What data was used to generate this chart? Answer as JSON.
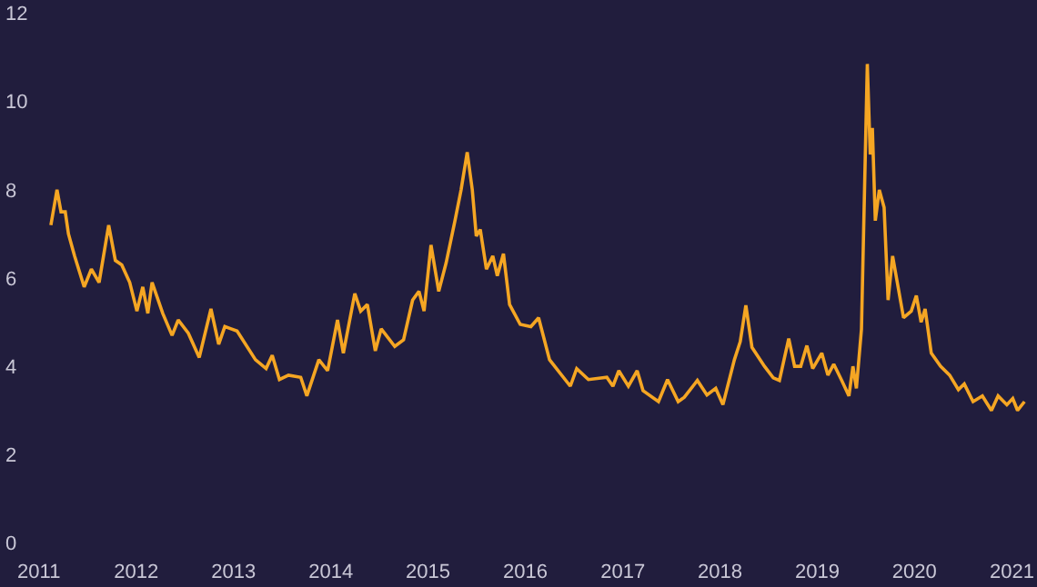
{
  "chart_data": {
    "type": "line",
    "x": [
      "2011-02-15",
      "2011-03-10",
      "2011-03-25",
      "2011-04-10",
      "2011-04-22",
      "2011-05-15",
      "2011-06-20",
      "2011-07-17",
      "2011-08-15",
      "2011-09-20",
      "2011-10-15",
      "2011-11-08",
      "2011-12-08",
      "2012-01-04",
      "2012-01-26",
      "2012-02-14",
      "2012-03-01",
      "2012-04-10",
      "2012-05-15",
      "2012-06-07",
      "2012-07-15",
      "2012-08-25",
      "2012-10-08",
      "2012-11-06",
      "2012-11-29",
      "2013-01-14",
      "2013-03-24",
      "2013-05-03",
      "2013-05-26",
      "2013-06-22",
      "2013-07-26",
      "2013-09-10",
      "2013-10-03",
      "2013-11-17",
      "2013-12-20",
      "2014-01-26",
      "2014-02-17",
      "2014-04-01",
      "2014-04-23",
      "2014-05-18",
      "2014-06-17",
      "2014-07-09",
      "2014-08-29",
      "2014-10-01",
      "2014-11-04",
      "2014-11-28",
      "2014-12-17",
      "2015-01-12",
      "2015-02-10",
      "2015-03-10",
      "2015-04-12",
      "2015-05-05",
      "2015-05-28",
      "2015-06-16",
      "2015-07-01",
      "2015-07-16",
      "2015-08-08",
      "2015-09-01",
      "2015-09-18",
      "2015-10-11",
      "2015-11-03",
      "2015-12-13",
      "2016-01-22",
      "2016-02-20",
      "2016-04-01",
      "2016-06-18",
      "2016-07-12",
      "2016-08-25",
      "2016-11-02",
      "2016-11-25",
      "2016-12-17",
      "2017-01-22",
      "2017-02-24",
      "2017-03-18",
      "2017-05-15",
      "2017-06-18",
      "2017-07-28",
      "2017-08-20",
      "2017-10-08",
      "2017-11-13",
      "2017-12-16",
      "2018-01-12",
      "2018-02-24",
      "2018-03-18",
      "2018-04-08",
      "2018-05-01",
      "2018-06-17",
      "2018-07-20",
      "2018-08-12",
      "2018-09-16",
      "2018-10-08",
      "2018-10-31",
      "2018-11-23",
      "2018-12-15",
      "2019-01-18",
      "2019-02-10",
      "2019-03-04",
      "2019-04-03",
      "2019-04-30",
      "2019-05-15",
      "2019-05-28",
      "2019-06-16",
      "2019-07-08",
      "2019-07-19",
      "2019-07-27",
      "2019-08-07",
      "2019-08-22",
      "2019-09-09",
      "2019-09-24",
      "2019-10-11",
      "2019-10-30",
      "2019-11-21",
      "2019-12-20",
      "2020-01-08",
      "2020-01-26",
      "2020-02-10",
      "2020-03-04",
      "2020-04-08",
      "2020-05-12",
      "2020-06-14",
      "2020-07-06",
      "2020-08-08",
      "2020-09-12",
      "2020-10-16",
      "2020-11-10",
      "2020-12-13",
      "2021-01-04",
      "2021-01-22",
      "2021-02-17"
    ],
    "series": [
      {
        "color": "#f5a623",
        "values": [
          7.2,
          8.0,
          7.5,
          7.5,
          7.0,
          6.5,
          5.8,
          6.2,
          5.9,
          7.2,
          6.4,
          6.3,
          5.9,
          5.25,
          5.8,
          5.2,
          5.9,
          5.2,
          4.7,
          5.05,
          4.75,
          4.2,
          5.3,
          4.5,
          4.9,
          4.8,
          4.15,
          3.95,
          4.25,
          3.7,
          3.8,
          3.75,
          3.33,
          4.15,
          3.9,
          5.05,
          4.3,
          5.65,
          5.25,
          5.4,
          4.35,
          4.85,
          4.45,
          4.6,
          5.5,
          5.7,
          5.25,
          6.75,
          5.7,
          6.35,
          7.3,
          8.0,
          8.85,
          8.0,
          6.95,
          7.1,
          6.2,
          6.5,
          6.05,
          6.55,
          5.4,
          4.95,
          4.9,
          5.1,
          4.15,
          3.55,
          3.95,
          3.7,
          3.75,
          3.55,
          3.9,
          3.55,
          3.9,
          3.45,
          3.2,
          3.7,
          3.2,
          3.3,
          3.68,
          3.35,
          3.5,
          3.13,
          4.15,
          4.56,
          5.38,
          4.43,
          4.0,
          3.74,
          3.68,
          4.63,
          4.0,
          4.0,
          4.47,
          3.95,
          4.3,
          3.8,
          4.05,
          3.68,
          3.33,
          4.0,
          3.5,
          4.84,
          10.85,
          8.8,
          9.4,
          7.3,
          8.0,
          7.6,
          5.5,
          6.5,
          5.85,
          5.1,
          5.25,
          5.6,
          5.0,
          5.3,
          4.3,
          4.0,
          3.8,
          3.47,
          3.6,
          3.2,
          3.33,
          3.0,
          3.33,
          3.13,
          3.27,
          3.0,
          3.2
        ]
      }
    ],
    "xlim": [
      "2010-08-08",
      "2021-04-05"
    ],
    "xticks": [
      "2011",
      "2012",
      "2013",
      "2014",
      "2015",
      "2016",
      "2017",
      "2018",
      "2019",
      "2020",
      "2021"
    ],
    "ylim": [
      -1,
      12.3
    ],
    "yticks": [
      0,
      2,
      4,
      6,
      8,
      10,
      12
    ],
    "grid": false,
    "legend": false
  }
}
